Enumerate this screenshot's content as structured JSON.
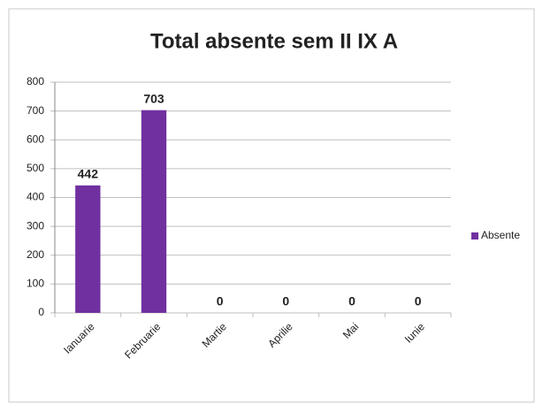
{
  "chart_data": {
    "type": "bar",
    "title": "Total absente sem II IX A",
    "categories": [
      "Ianuarie",
      "Februarie",
      "Martie",
      "Aprilie",
      "Mai",
      "Iunie"
    ],
    "series": [
      {
        "name": "Absente",
        "color": "#7030a0",
        "values": [
          442,
          703,
          0,
          0,
          0,
          0
        ]
      }
    ],
    "ylim": [
      0,
      800
    ],
    "yticks": [
      0,
      100,
      200,
      300,
      400,
      500,
      600,
      700,
      800
    ],
    "grid": true,
    "legend": "right"
  }
}
